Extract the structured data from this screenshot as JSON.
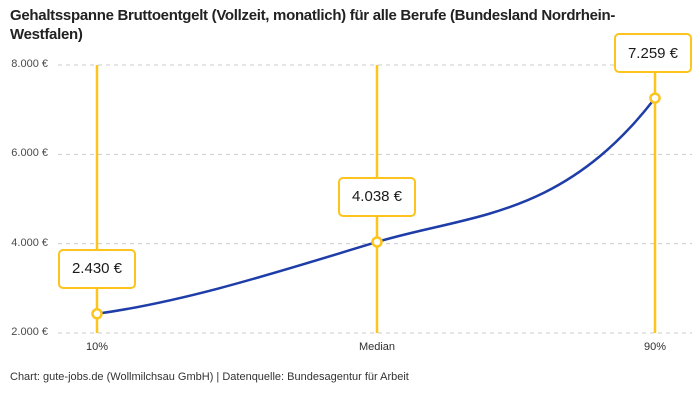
{
  "header": {
    "title": "Gehaltsspanne Bruttoentgelt (Vollzeit, monatlich) für alle Berufe (Bundesland Nordrhein-Westfalen)"
  },
  "footer": {
    "text": "Chart: gute-jobs.de (Wollmilchsau GmbH) | Datenquelle: Bundesagentur für Arbeit"
  },
  "colors": {
    "accent_yellow": "#FCC41C",
    "line_blue": "#1E3DA8",
    "grid_gray": "#CBCBCB",
    "title_text": "#222222"
  },
  "chart_data": {
    "type": "line",
    "title": "Gehaltsspanne Bruttoentgelt (Vollzeit, monatlich) für alle Berufe (Bundesland Nordrhein-Westfalen)",
    "categories": [
      "10%",
      "Median",
      "90%"
    ],
    "values": [
      2430,
      4038,
      7259
    ],
    "value_labels": [
      "2.430 €",
      "4.038 €",
      "7.259 €"
    ],
    "y_ticks": [
      2000,
      4000,
      6000,
      8000
    ],
    "y_tick_labels": [
      "2.000 €",
      "4.000 €",
      "6.000 €",
      "8.000 €"
    ],
    "ylim": [
      2000,
      8000
    ],
    "xlabel": "",
    "ylabel": "",
    "legend": "none",
    "grid": "horizontal dashed",
    "marker": "open circle on yellow vertical guide line",
    "annotations": "each data point labeled with value in a yellow-bordered white box above the point"
  }
}
